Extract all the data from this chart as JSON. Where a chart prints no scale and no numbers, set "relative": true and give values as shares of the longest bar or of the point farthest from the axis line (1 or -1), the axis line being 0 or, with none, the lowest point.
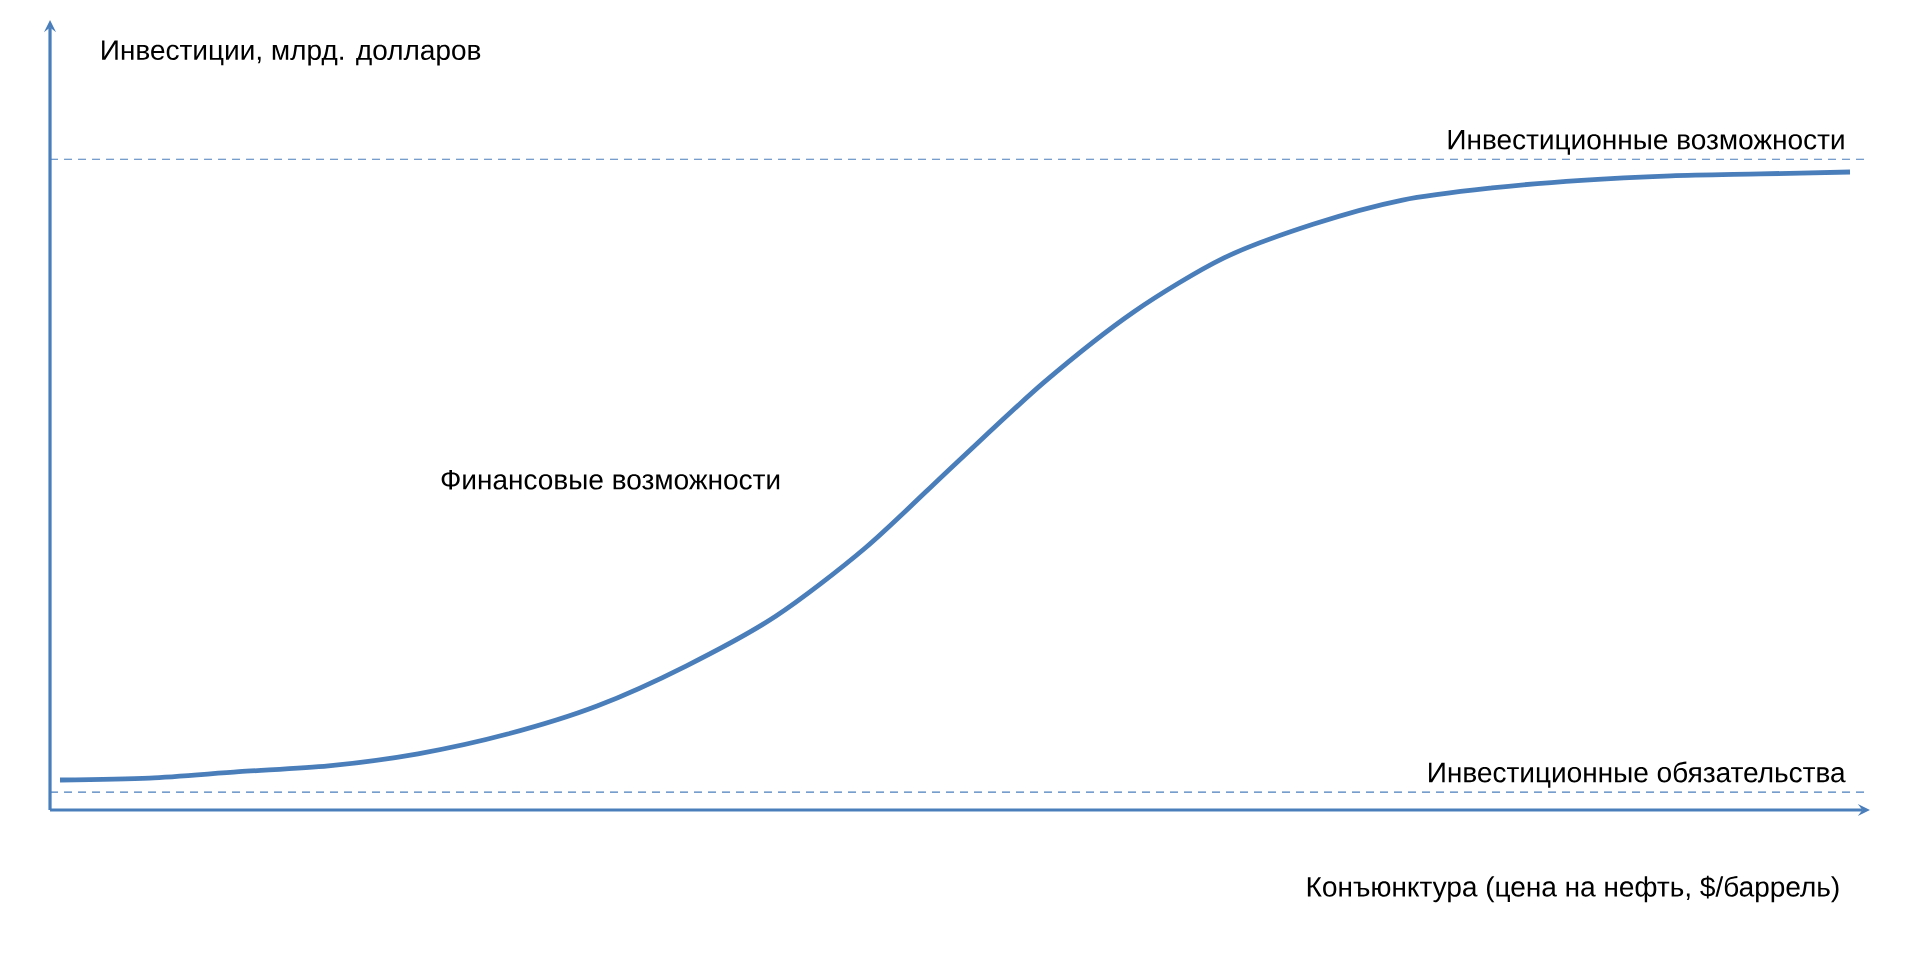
{
  "chart_data": {
    "type": "line",
    "relative": true,
    "xlabel": "Конъюнктура (цена на нефть, $/баррель)",
    "ylabel": "Инвестиции, млрд. долларов",
    "annotations": [
      "Финансовые возможности"
    ],
    "categories": [
      null,
      null,
      null,
      null,
      null,
      null,
      null,
      null,
      null,
      null,
      null,
      null,
      null,
      null,
      null,
      null,
      null,
      null,
      null,
      null,
      null
    ],
    "series": [
      {
        "color": "#4a7ebb",
        "values": [
          0.047,
          0.05,
          0.06,
          0.069,
          0.088,
          0.119,
          0.163,
          0.226,
          0.304,
          0.411,
          0.542,
          0.671,
          0.781,
          0.865,
          0.918,
          0.956,
          0.975,
          0.987,
          0.994,
          0.997,
          1.0
        ]
      }
    ],
    "ref_lines": [
      {
        "axis": "y",
        "value": 1.02,
        "label": "Инвестиционные возможности",
        "color": "#4a7ebb",
        "line_style": "dashed"
      },
      {
        "axis": "y",
        "value": 0.028,
        "label": "Инвестиционные обязательства",
        "color": "#4a7ebb",
        "line_style": "dashed"
      }
    ]
  }
}
